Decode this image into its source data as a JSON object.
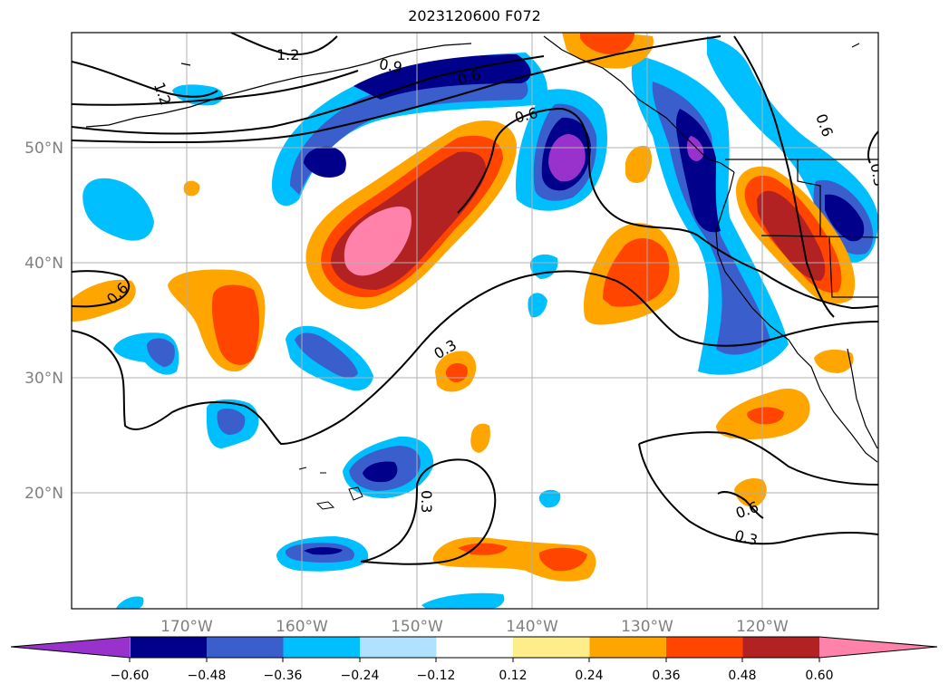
{
  "title": "2023120600 F072",
  "map": {
    "lon_labels": [
      "170°W",
      "160°W",
      "150°W",
      "140°W",
      "130°W",
      "120°W"
    ],
    "lat_labels": [
      "50°N",
      "40°N",
      "30°N",
      "20°N"
    ],
    "contour_labels": [
      "1.2",
      "1.2",
      "0.9",
      "0.6",
      "0.6",
      "0.6",
      "0.3",
      "0.3",
      "0.6",
      "0.3",
      "0.6",
      "0.3"
    ]
  },
  "colorbar": {
    "ticks": [
      "−0.60",
      "−0.48",
      "−0.36",
      "−0.24",
      "−0.12",
      "0.12",
      "0.24",
      "0.36",
      "0.48",
      "0.60"
    ],
    "colors": [
      "#9932CC",
      "#00008B",
      "#3A5FCD",
      "#00BFFF",
      "#B0E2FF",
      "#FFFFFF",
      "#FFEC8B",
      "#FFA500",
      "#FF4500",
      "#B22222",
      "#FF82AB"
    ]
  }
}
